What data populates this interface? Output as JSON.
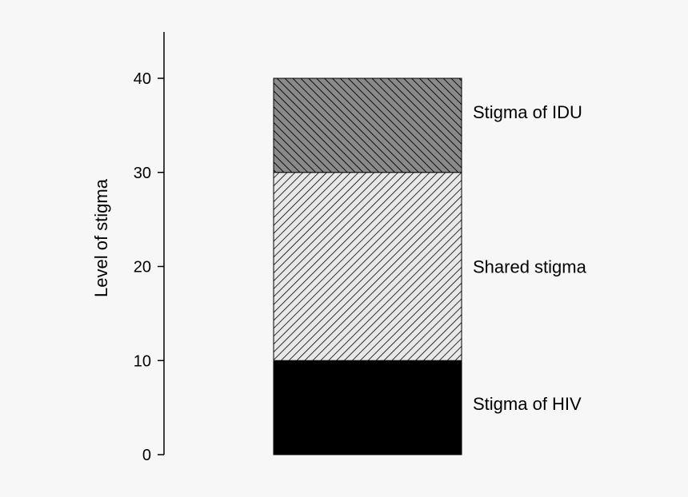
{
  "chart_data": {
    "type": "bar",
    "stacked": true,
    "title": "",
    "xlabel": "",
    "ylabel": "Level of stigma",
    "ylim": [
      0,
      45
    ],
    "yticks": [
      0,
      10,
      20,
      30,
      40
    ],
    "grid": false,
    "legend": "none",
    "segments": [
      {
        "name": "Stigma of HIV",
        "start": 0,
        "end": 10,
        "value": 10,
        "fill": "#000000",
        "hatch": "none"
      },
      {
        "name": "Shared stigma",
        "start": 10,
        "end": 30,
        "value": 20,
        "fill": "#e8e8e8",
        "hatch": "diagonal-forward",
        "hatch_color": "#000000"
      },
      {
        "name": "Stigma of IDU",
        "start": 30,
        "end": 40,
        "value": 10,
        "fill": "#8a8a8a",
        "hatch": "diagonal-backward",
        "hatch_color": "#000000"
      }
    ]
  }
}
